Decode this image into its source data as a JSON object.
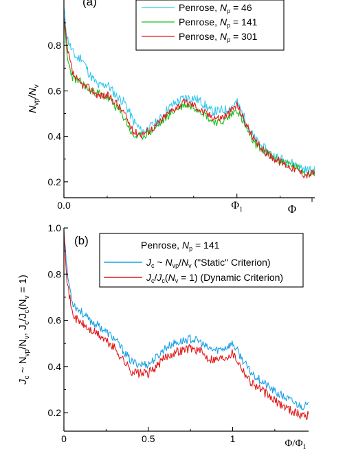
{
  "colors": {
    "cyan": "#33c8f0",
    "green": "#1fbf1f",
    "red": "#e01818",
    "blue": "#1aa0e8"
  },
  "chart_data": [
    {
      "id": "a",
      "type": "line",
      "panel_label": "(a)",
      "ylabel_main": "N",
      "ylabel_sub1": "vp",
      "ylabel_mid": "/N",
      "ylabel_sub2": "v",
      "xlabel": "Φ",
      "xlim": [
        0,
        1.45
      ],
      "ylim": [
        0.13,
        1.0
      ],
      "yticks": [
        {
          "v": 0.2,
          "label": "0.2"
        },
        {
          "v": 0.4,
          "label": "0.4"
        },
        {
          "v": 0.6,
          "label": "0.6"
        },
        {
          "v": 0.8,
          "label": "0.8"
        }
      ],
      "xticks": [
        {
          "v": 0,
          "label": "0.0"
        },
        {
          "v": 1.0,
          "label": "Φ",
          "sub": "1"
        }
      ],
      "legend": [
        {
          "prefix": "Penrose, ",
          "var": "N",
          "sub": "p",
          "suffix": " = 46",
          "color": "cyan"
        },
        {
          "prefix": "Penrose, ",
          "var": "N",
          "sub": "p",
          "suffix": " = 141",
          "color": "green"
        },
        {
          "prefix": "Penrose, ",
          "var": "N",
          "sub": "p",
          "suffix": " = 301",
          "color": "red"
        }
      ],
      "series": [
        {
          "color": "cyan",
          "noise": 0.022,
          "seed": 11,
          "x": [
            0,
            0.02,
            0.05,
            0.08,
            0.1,
            0.15,
            0.2,
            0.25,
            0.3,
            0.35,
            0.4,
            0.45,
            0.5,
            0.55,
            0.6,
            0.65,
            0.7,
            0.75,
            0.8,
            0.85,
            0.9,
            0.95,
            1.0,
            1.05,
            1.1,
            1.15,
            1.2,
            1.25,
            1.3,
            1.35,
            1.4,
            1.45
          ],
          "y": [
            0.96,
            0.83,
            0.77,
            0.74,
            0.75,
            0.67,
            0.62,
            0.63,
            0.58,
            0.55,
            0.47,
            0.42,
            0.44,
            0.47,
            0.52,
            0.55,
            0.57,
            0.57,
            0.55,
            0.51,
            0.51,
            0.52,
            0.55,
            0.47,
            0.39,
            0.35,
            0.32,
            0.3,
            0.29,
            0.27,
            0.25,
            0.25
          ]
        },
        {
          "color": "green",
          "noise": 0.018,
          "seed": 23,
          "x": [
            0,
            0.02,
            0.05,
            0.08,
            0.1,
            0.15,
            0.2,
            0.25,
            0.3,
            0.35,
            0.4,
            0.45,
            0.5,
            0.55,
            0.6,
            0.65,
            0.7,
            0.75,
            0.8,
            0.85,
            0.9,
            0.95,
            1.0,
            1.05,
            1.1,
            1.15,
            1.2,
            1.25,
            1.3,
            1.35,
            1.4,
            1.45
          ],
          "y": [
            0.9,
            0.74,
            0.66,
            0.64,
            0.64,
            0.6,
            0.59,
            0.57,
            0.53,
            0.48,
            0.4,
            0.4,
            0.42,
            0.45,
            0.49,
            0.52,
            0.54,
            0.53,
            0.51,
            0.47,
            0.46,
            0.48,
            0.52,
            0.44,
            0.37,
            0.34,
            0.31,
            0.29,
            0.28,
            0.26,
            0.24,
            0.24
          ]
        },
        {
          "color": "red",
          "noise": 0.018,
          "seed": 37,
          "x": [
            0,
            0.02,
            0.05,
            0.08,
            0.1,
            0.15,
            0.2,
            0.25,
            0.3,
            0.35,
            0.4,
            0.45,
            0.5,
            0.55,
            0.6,
            0.65,
            0.7,
            0.75,
            0.8,
            0.85,
            0.9,
            0.95,
            1.0,
            1.05,
            1.1,
            1.15,
            1.2,
            1.25,
            1.3,
            1.35,
            1.4,
            1.45
          ],
          "y": [
            0.92,
            0.78,
            0.68,
            0.64,
            0.63,
            0.61,
            0.58,
            0.58,
            0.55,
            0.5,
            0.42,
            0.41,
            0.43,
            0.46,
            0.5,
            0.53,
            0.55,
            0.54,
            0.51,
            0.49,
            0.48,
            0.5,
            0.54,
            0.46,
            0.38,
            0.34,
            0.31,
            0.29,
            0.27,
            0.25,
            0.23,
            0.24
          ]
        }
      ]
    },
    {
      "id": "b",
      "type": "line",
      "panel_label": "(b)",
      "ylabel_main": "J",
      "ylabel_sub1": "c",
      "ylabel_mid": " ~ N",
      "ylabel_sub2": "vp",
      "ylabel_mid2": "/N",
      "ylabel_sub3": "v",
      "ylabel_mid3": ",  J",
      "ylabel_sub4": "c",
      "ylabel_mid4": "/J",
      "ylabel_sub5": "c",
      "ylabel_mid5": "(N",
      "ylabel_sub6": "v",
      "ylabel_end": " = 1)",
      "xlabel": "Φ/Φ",
      "xlabel_sub": "1",
      "xlim": [
        0,
        1.45
      ],
      "ylim": [
        0.12,
        1.0
      ],
      "yticks": [
        {
          "v": 0.2,
          "label": "0.2"
        },
        {
          "v": 0.4,
          "label": "0.4"
        },
        {
          "v": 0.6,
          "label": "0.6"
        },
        {
          "v": 0.8,
          "label": "0.8"
        },
        {
          "v": 1.0,
          "label": "1.0"
        }
      ],
      "xticks": [
        {
          "v": 0,
          "label": "0"
        },
        {
          "v": 0.5,
          "label": "0.5"
        },
        {
          "v": 1.0,
          "label": "1"
        }
      ],
      "legend_title": {
        "prefix": "Penrose, ",
        "var": "N",
        "sub": "p",
        "suffix": " = 141"
      },
      "legend": [
        {
          "parts": [
            [
              "i",
              "J"
            ],
            [
              "s",
              "c"
            ],
            [
              "n",
              " ~ "
            ],
            [
              "i",
              "N"
            ],
            [
              "s",
              "vp"
            ],
            [
              "n",
              "/"
            ],
            [
              "i",
              "N"
            ],
            [
              "s",
              "v"
            ],
            [
              "n",
              "    (\"Static\" Criterion)"
            ]
          ],
          "color": "blue"
        },
        {
          "parts": [
            [
              "i",
              "J"
            ],
            [
              "s",
              "c"
            ],
            [
              "n",
              "/"
            ],
            [
              "i",
              "J"
            ],
            [
              "s",
              "c"
            ],
            [
              "n",
              "("
            ],
            [
              "i",
              "N"
            ],
            [
              "s",
              "v"
            ],
            [
              "n",
              " = 1) (Dynamic Criterion)"
            ]
          ],
          "color": "red"
        }
      ],
      "series": [
        {
          "color": "blue",
          "noise": 0.018,
          "seed": 53,
          "x": [
            0,
            0.02,
            0.05,
            0.08,
            0.1,
            0.15,
            0.2,
            0.25,
            0.3,
            0.35,
            0.4,
            0.45,
            0.5,
            0.55,
            0.6,
            0.65,
            0.7,
            0.75,
            0.8,
            0.85,
            0.9,
            0.95,
            1.0,
            1.05,
            1.1,
            1.15,
            1.2,
            1.25,
            1.3,
            1.35,
            1.4,
            1.45
          ],
          "y": [
            1.0,
            0.8,
            0.68,
            0.65,
            0.64,
            0.6,
            0.58,
            0.55,
            0.52,
            0.47,
            0.42,
            0.41,
            0.41,
            0.44,
            0.48,
            0.5,
            0.51,
            0.52,
            0.51,
            0.48,
            0.47,
            0.48,
            0.5,
            0.44,
            0.38,
            0.35,
            0.32,
            0.29,
            0.27,
            0.25,
            0.23,
            0.23
          ]
        },
        {
          "color": "red",
          "noise": 0.02,
          "seed": 71,
          "x": [
            0,
            0.02,
            0.05,
            0.08,
            0.1,
            0.15,
            0.2,
            0.25,
            0.3,
            0.35,
            0.4,
            0.45,
            0.5,
            0.55,
            0.6,
            0.65,
            0.7,
            0.75,
            0.8,
            0.85,
            0.9,
            0.95,
            1.0,
            1.05,
            1.1,
            1.15,
            1.2,
            1.25,
            1.3,
            1.35,
            1.4,
            1.45
          ],
          "y": [
            1.0,
            0.76,
            0.63,
            0.6,
            0.59,
            0.56,
            0.54,
            0.51,
            0.48,
            0.43,
            0.38,
            0.37,
            0.37,
            0.4,
            0.44,
            0.46,
            0.47,
            0.48,
            0.47,
            0.44,
            0.43,
            0.44,
            0.46,
            0.4,
            0.34,
            0.31,
            0.28,
            0.25,
            0.23,
            0.21,
            0.19,
            0.19
          ]
        }
      ]
    }
  ]
}
